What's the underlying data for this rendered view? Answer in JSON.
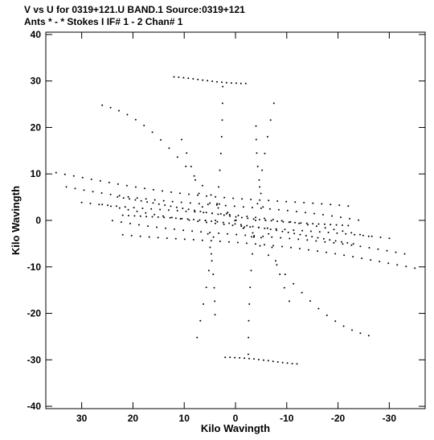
{
  "chart_data": {
    "type": "scatter",
    "title": "V vs U for 0319+121.U BAND.1   Source:0319+121",
    "subtitle": "Ants * - *    Stokes I  IF# 1 - 2  Chan# 1",
    "xlabel": "Kilo Wavingth",
    "ylabel": "Kilo Wavingth",
    "xlim": [
      37,
      -37
    ],
    "ylim": [
      -40.5,
      40.5
    ],
    "x_reversed": true,
    "xticks": [
      30,
      20,
      10,
      0,
      -10,
      -20,
      -30
    ],
    "xtick_labels": [
      "30",
      "20",
      "10",
      "0",
      "-10",
      "-20",
      "-30"
    ],
    "yticks": [
      40,
      30,
      20,
      10,
      0,
      -10,
      -20,
      -30,
      -40
    ],
    "ytick_labels": [
      "40",
      "30",
      "20",
      "10",
      "0",
      "-10",
      "-20",
      "-30",
      "-40"
    ],
    "grid": false,
    "marker": "dot",
    "color": "#000000",
    "tracks": [
      {
        "x0": -2.5,
        "x1": -5.0,
        "x2": -7.5,
        "points": 16,
        "y_step": 3.6,
        "mirror": true
      },
      {
        "x0": 4.0,
        "x1": 8.0,
        "x2": 10.5,
        "points": 14,
        "y_step": 2.9,
        "mirror": true
      },
      {
        "x0": 35.0,
        "x1": 8.0,
        "x2": -22.0,
        "points": 34,
        "y_offset": 5.5,
        "slope": 0.13,
        "mirror": true
      },
      {
        "x0": 33.0,
        "x1": 6.0,
        "x2": -24.0,
        "points": 34,
        "y_offset": 3.5,
        "slope": 0.13,
        "mirror": true
      },
      {
        "x0": 30.0,
        "x1": 4.0,
        "x2": -26.0,
        "points": 34,
        "y_offset": 1.5,
        "slope": 0.13,
        "mirror": true
      },
      {
        "x0": 22.0,
        "x1": 2.0,
        "x2": -23.0,
        "points": 40,
        "y_offset": -0.5,
        "slope": 0.13,
        "mirror": true
      },
      {
        "x0": 26.0,
        "x1": 10.0,
        "x2": -5.0,
        "points": 20,
        "y_offset": 12.0,
        "slope": 0.9,
        "mirror": true
      },
      {
        "x0": 12.0,
        "x1": 5.0,
        "x2": -2.0,
        "points": 16,
        "y_offset": 30.0,
        "slope": 0.1,
        "mirror": true
      }
    ]
  }
}
